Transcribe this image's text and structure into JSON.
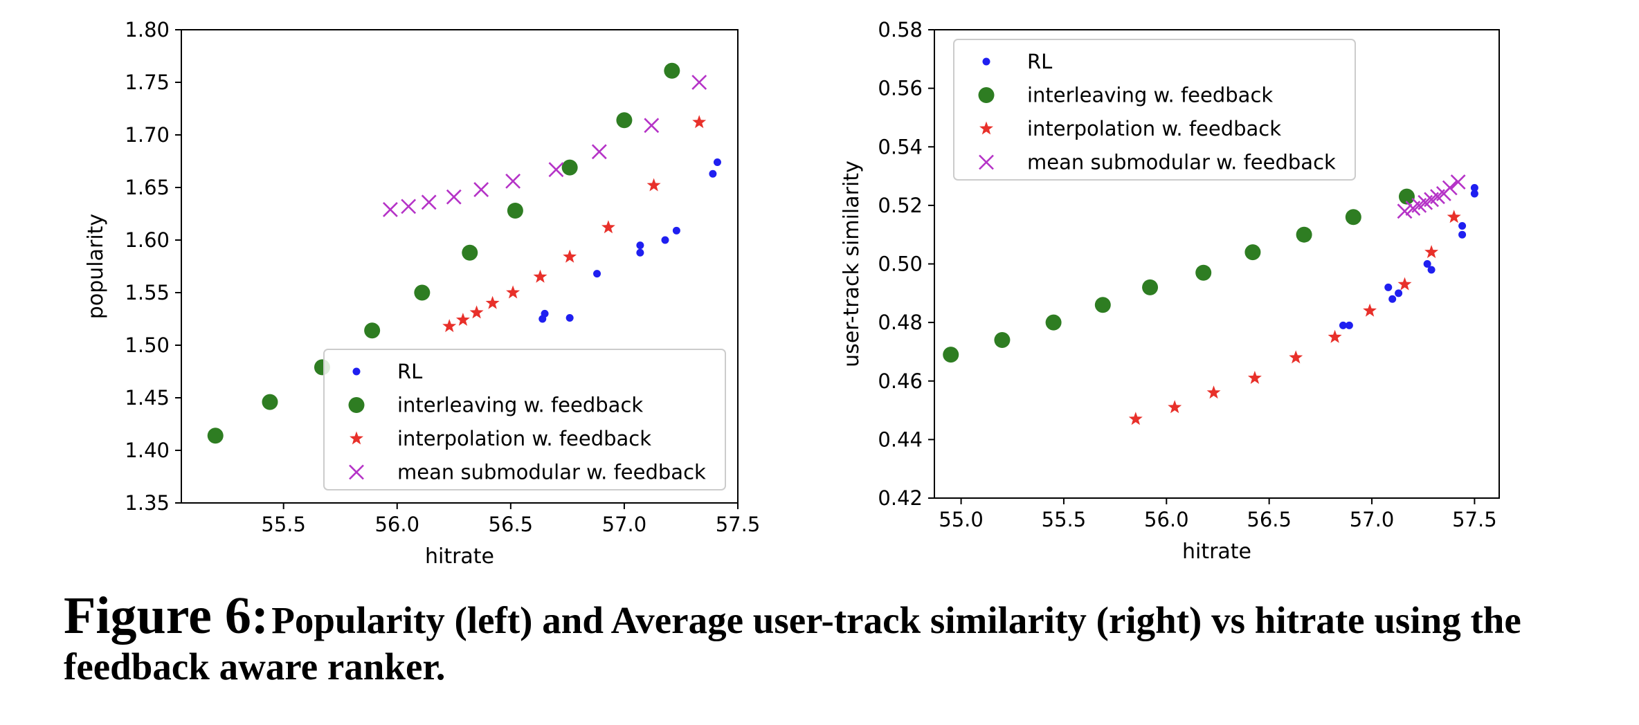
{
  "caption": {
    "label": "Figure 6:",
    "text": "Popularity (left) and Average user-track similarity (right) vs hitrate using the feedback aware ranker."
  },
  "colors": {
    "RL": "#1f1ff0",
    "interleaving": "#2e7d22",
    "interpolation": "#e8302a",
    "mean_submodular": "#b533c7"
  },
  "chart_data": [
    {
      "type": "scatter",
      "title": "",
      "xlabel": "hitrate",
      "ylabel": "popularity",
      "xlim": [
        55.05,
        57.5
      ],
      "ylim": [
        1.35,
        1.8
      ],
      "xticks": [
        "55.5",
        "56.0",
        "56.5",
        "57.0",
        "57.5"
      ],
      "yticks": [
        "1.35",
        "1.40",
        "1.45",
        "1.50",
        "1.55",
        "1.60",
        "1.65",
        "1.70",
        "1.75",
        "1.80"
      ],
      "legend_position": "lower-right",
      "grid": false,
      "series": [
        {
          "name": "RL",
          "marker": "dot",
          "x": [
            56.64,
            56.65,
            56.76,
            56.88,
            57.07,
            57.07,
            57.18,
            57.23,
            57.39,
            57.41
          ],
          "y": [
            1.525,
            1.53,
            1.526,
            1.568,
            1.588,
            1.595,
            1.6,
            1.609,
            1.663,
            1.674
          ]
        },
        {
          "name": "interleaving w. feedback",
          "marker": "circle",
          "x": [
            55.2,
            55.44,
            55.67,
            55.89,
            56.11,
            56.32,
            56.52,
            56.76,
            57.0,
            57.21
          ],
          "y": [
            1.414,
            1.446,
            1.479,
            1.514,
            1.55,
            1.588,
            1.628,
            1.669,
            1.714,
            1.761
          ]
        },
        {
          "name": "interpolation w. feedback",
          "marker": "star",
          "x": [
            56.23,
            56.29,
            56.35,
            56.42,
            56.51,
            56.63,
            56.76,
            56.93,
            57.13,
            57.33
          ],
          "y": [
            1.518,
            1.524,
            1.531,
            1.54,
            1.55,
            1.565,
            1.584,
            1.612,
            1.652,
            1.712
          ]
        },
        {
          "name": "mean submodular w. feedback",
          "marker": "x",
          "x": [
            55.97,
            56.05,
            56.14,
            56.25,
            56.37,
            56.51,
            56.7,
            56.89,
            57.12,
            57.33
          ],
          "y": [
            1.629,
            1.632,
            1.636,
            1.641,
            1.648,
            1.656,
            1.667,
            1.684,
            1.709,
            1.75
          ]
        }
      ]
    },
    {
      "type": "scatter",
      "title": "",
      "xlabel": "hitrate",
      "ylabel": "user-track similarity",
      "xlim": [
        54.87,
        57.62
      ],
      "ylim": [
        0.42,
        0.58
      ],
      "xticks": [
        "55.0",
        "55.5",
        "56.0",
        "56.5",
        "57.0",
        "57.5"
      ],
      "yticks": [
        "0.42",
        "0.44",
        "0.46",
        "0.48",
        "0.50",
        "0.52",
        "0.54",
        "0.56",
        "0.58"
      ],
      "legend_position": "upper-left",
      "grid": false,
      "series": [
        {
          "name": "RL",
          "marker": "dot",
          "x": [
            56.86,
            56.89,
            57.08,
            57.1,
            57.13,
            57.27,
            57.29,
            57.44,
            57.44,
            57.5,
            57.5
          ],
          "y": [
            0.479,
            0.479,
            0.492,
            0.488,
            0.49,
            0.5,
            0.498,
            0.51,
            0.513,
            0.524,
            0.526
          ]
        },
        {
          "name": "interleaving w. feedback",
          "marker": "circle",
          "x": [
            54.95,
            55.2,
            55.45,
            55.69,
            55.92,
            56.18,
            56.42,
            56.67,
            56.91,
            57.17
          ],
          "y": [
            0.469,
            0.474,
            0.48,
            0.486,
            0.492,
            0.497,
            0.504,
            0.51,
            0.516,
            0.523
          ]
        },
        {
          "name": "interpolation w. feedback",
          "marker": "star",
          "x": [
            55.85,
            56.04,
            56.23,
            56.43,
            56.63,
            56.82,
            56.99,
            57.16,
            57.29,
            57.4
          ],
          "y": [
            0.447,
            0.451,
            0.456,
            0.461,
            0.468,
            0.475,
            0.484,
            0.493,
            0.504,
            0.516
          ]
        },
        {
          "name": "mean submodular w. feedback",
          "marker": "x",
          "x": [
            57.16,
            57.2,
            57.23,
            57.26,
            57.29,
            57.32,
            57.35,
            57.38,
            57.42
          ],
          "y": [
            0.518,
            0.519,
            0.52,
            0.521,
            0.522,
            0.523,
            0.524,
            0.526,
            0.528
          ]
        }
      ]
    }
  ]
}
